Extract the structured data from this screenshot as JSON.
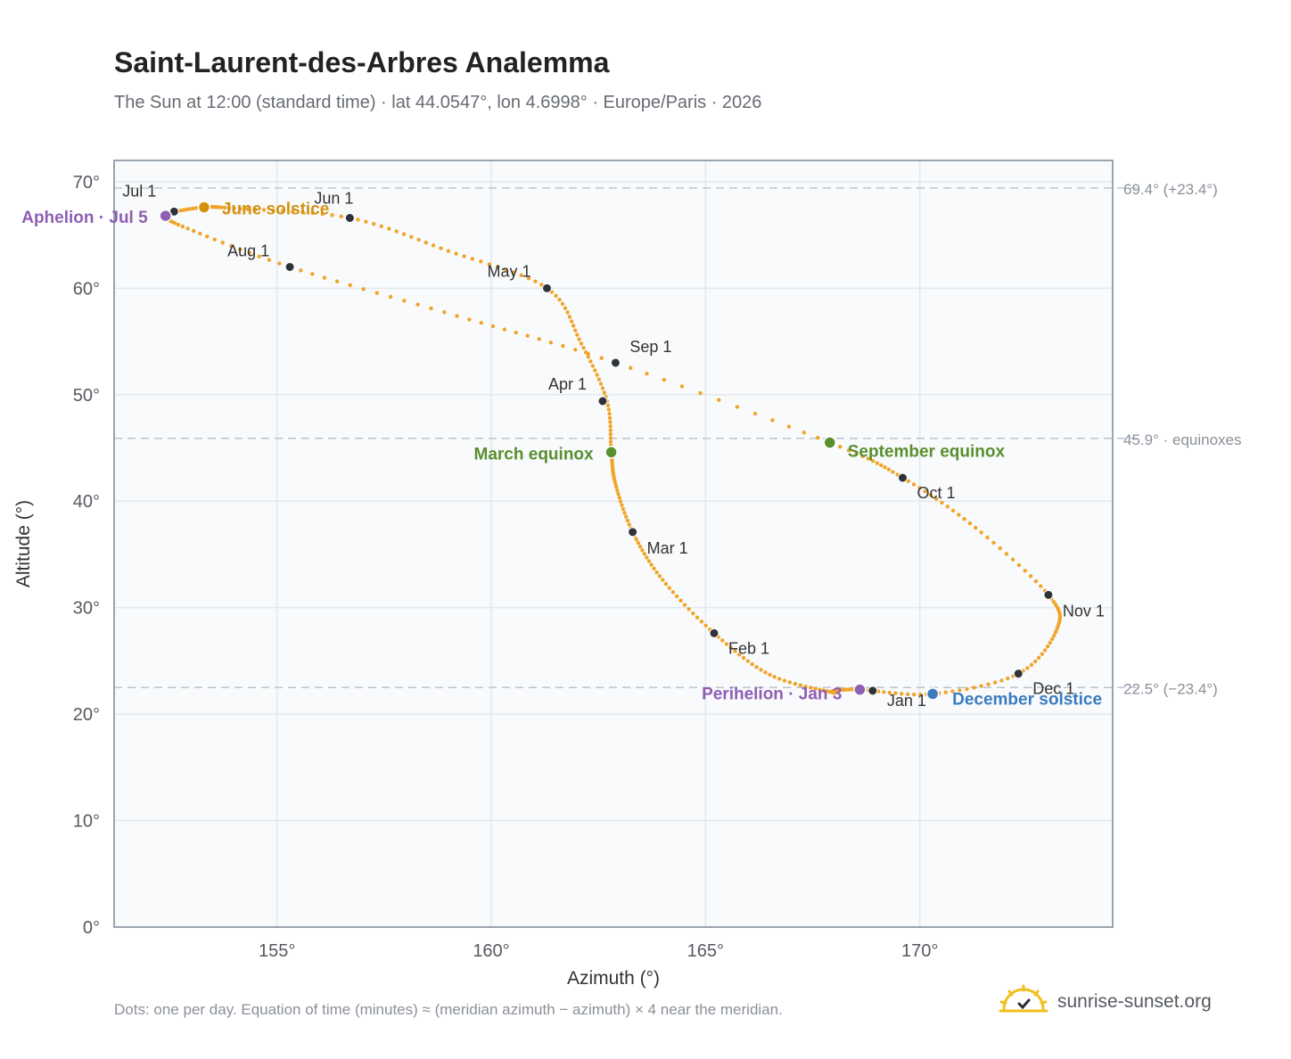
{
  "chart_data": {
    "type": "scatter",
    "title": "Saint-Laurent-des-Arbres Analemma",
    "subtitle": "The Sun at 12:00 (standard time) · lat 44.0547°, lon 4.6998° · Europe/Paris · 2026",
    "xlabel": "Azimuth (°)",
    "ylabel": "Altitude (°)",
    "xlim": [
      151.2,
      174.5
    ],
    "ylim": [
      0,
      72
    ],
    "x_ticks": [
      155,
      160,
      165,
      170
    ],
    "x_tick_labels": [
      "155°",
      "160°",
      "165°",
      "170°"
    ],
    "y_ticks": [
      0,
      10,
      20,
      30,
      40,
      50,
      60,
      70
    ],
    "y_tick_labels": [
      "0°",
      "10°",
      "20°",
      "30°",
      "40°",
      "50°",
      "60°",
      "70°"
    ],
    "grid": true,
    "series": [
      {
        "color": "#f0a52a",
        "points": [
          [
            168.0,
            22.2
          ],
          [
            167.9,
            22.1
          ],
          [
            166.5,
            23.7
          ],
          [
            165.2,
            27.6
          ],
          [
            164.0,
            32.6
          ],
          [
            163.3,
            37.1
          ],
          [
            162.9,
            41.6
          ],
          [
            162.8,
            44.6
          ],
          [
            162.7,
            49.4
          ],
          [
            162.1,
            54.8
          ],
          [
            161.3,
            60.0
          ],
          [
            159.0,
            63.5
          ],
          [
            156.7,
            66.6
          ],
          [
            154.0,
            67.5
          ],
          [
            153.3,
            67.6
          ],
          [
            152.5,
            67.1
          ],
          [
            152.4,
            66.8
          ],
          [
            152.8,
            65.8
          ],
          [
            155.3,
            62.0
          ],
          [
            159.2,
            57.4
          ],
          [
            162.9,
            53.0
          ],
          [
            167.9,
            45.5
          ],
          [
            169.6,
            42.2
          ],
          [
            171.3,
            37.5
          ],
          [
            173.0,
            31.2
          ],
          [
            173.2,
            28.0
          ],
          [
            172.3,
            23.8
          ],
          [
            170.3,
            21.9
          ],
          [
            168.6,
            22.3
          ],
          [
            168.0,
            22.2
          ]
        ]
      }
    ],
    "month_markers": [
      {
        "label": "Jan 1",
        "az": 168.9,
        "alt": 22.2
      },
      {
        "label": "Feb 1",
        "az": 165.2,
        "alt": 27.6
      },
      {
        "label": "Mar 1",
        "az": 163.3,
        "alt": 37.1
      },
      {
        "label": "Apr 1",
        "az": 162.6,
        "alt": 49.4
      },
      {
        "label": "May 1",
        "az": 161.3,
        "alt": 60.0
      },
      {
        "label": "Jun 1",
        "az": 156.7,
        "alt": 66.6
      },
      {
        "label": "Jul 1",
        "az": 152.6,
        "alt": 67.2
      },
      {
        "label": "Aug 1",
        "az": 155.3,
        "alt": 62.0
      },
      {
        "label": "Sep 1",
        "az": 162.9,
        "alt": 53.0
      },
      {
        "label": "Oct 1",
        "az": 169.6,
        "alt": 42.2
      },
      {
        "label": "Nov 1",
        "az": 173.0,
        "alt": 31.2
      },
      {
        "label": "Dec 1",
        "az": 172.3,
        "alt": 23.8
      }
    ],
    "events": [
      {
        "label": "Aphelion · Jul 5",
        "az": 152.4,
        "alt": 66.8,
        "color": "#8e5fb3"
      },
      {
        "label": "June solstice",
        "az": 153.3,
        "alt": 67.6,
        "color": "#d4900f"
      },
      {
        "label": "March equinox",
        "az": 162.8,
        "alt": 44.6,
        "color": "#5a8f2e"
      },
      {
        "label": "September equinox",
        "az": 167.9,
        "alt": 45.5,
        "color": "#5a8f2e"
      },
      {
        "label": "Perihelion · Jan 3",
        "az": 168.6,
        "alt": 22.3,
        "color": "#8e5fb3"
      },
      {
        "label": "December solstice",
        "az": 170.3,
        "alt": 21.9,
        "color": "#3a7bbf"
      }
    ],
    "reference_lines": [
      {
        "alt": 69.4,
        "label": "69.4° (+23.4°)"
      },
      {
        "alt": 45.9,
        "label": "45.9° · equinoxes"
      },
      {
        "alt": 22.5,
        "label": "22.5° (−23.4°)"
      }
    ]
  },
  "footnote": "Dots: one per day. Equation of time (minutes) ≈ (meridian azimuth − azimuth) × 4 near the meridian.",
  "brand": {
    "text": "sunrise-sunset.org",
    "icon": "sun-logo-icon",
    "color": "#f0c020"
  }
}
